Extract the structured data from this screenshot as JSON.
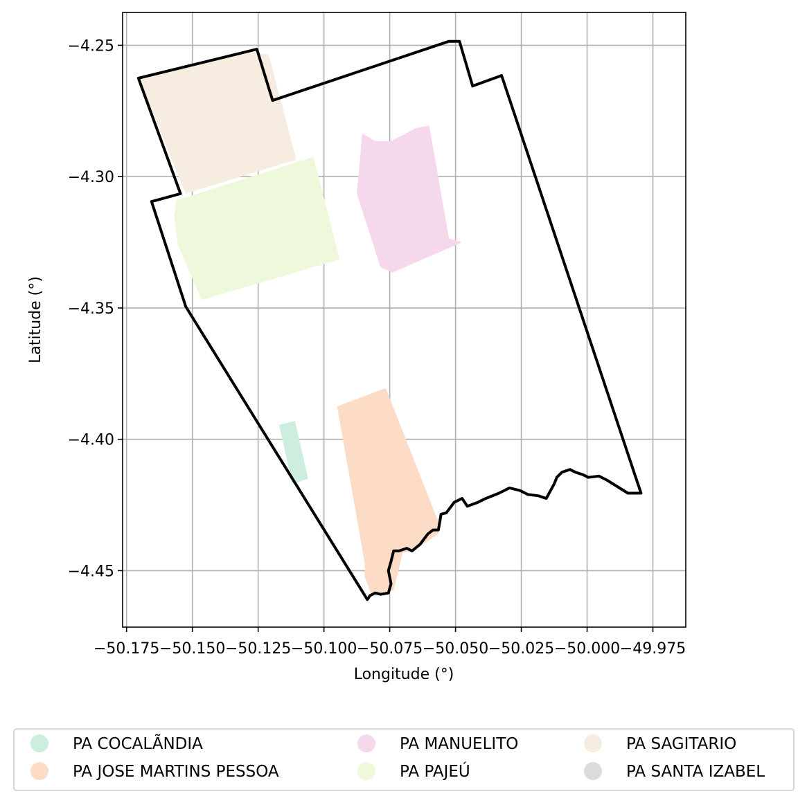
{
  "chart_data": {
    "type": "map",
    "xlabel": "Longitude (°)",
    "ylabel": "Latitude (°)",
    "xlim": [
      -50.1765,
      -49.9625
    ],
    "ylim": [
      -4.4715,
      -4.2375
    ],
    "grid": true,
    "x_ticks": [
      {
        "value": -50.175,
        "label": "−50.175"
      },
      {
        "value": -50.15,
        "label": "−50.150"
      },
      {
        "value": -50.125,
        "label": "−50.125"
      },
      {
        "value": -50.1,
        "label": "−50.100"
      },
      {
        "value": -50.075,
        "label": "−50.075"
      },
      {
        "value": -50.05,
        "label": "−50.050"
      },
      {
        "value": -50.025,
        "label": "−50.025"
      },
      {
        "value": -50.0,
        "label": "−50.000"
      },
      {
        "value": -49.975,
        "label": "−49.975"
      }
    ],
    "y_ticks": [
      {
        "value": -4.25,
        "label": "−4.25"
      },
      {
        "value": -4.3,
        "label": "−4.30"
      },
      {
        "value": -4.35,
        "label": "−4.35"
      },
      {
        "value": -4.4,
        "label": "−4.40"
      },
      {
        "value": -4.45,
        "label": "−4.45"
      }
    ],
    "series": [
      {
        "name": "PA COCALÃNDIA",
        "color": "#cdeede",
        "polygon": [
          [
            -50.117,
            -4.3945
          ],
          [
            -50.111,
            -4.393
          ],
          [
            -50.106,
            -4.415
          ],
          [
            -50.112,
            -4.417
          ]
        ]
      },
      {
        "name": "PA JOSE MARTINS PESSOA",
        "color": "#fcdcc6",
        "polygon": [
          [
            -50.095,
            -4.3875
          ],
          [
            -50.0765,
            -4.3805
          ],
          [
            -50.0565,
            -4.4315
          ],
          [
            -50.0565,
            -4.436
          ],
          [
            -50.066,
            -4.4425
          ],
          [
            -50.07,
            -4.443
          ],
          [
            -50.0735,
            -4.4575
          ],
          [
            -50.082,
            -4.459
          ],
          [
            -50.0845,
            -4.4525
          ],
          [
            -50.0845,
            -4.447
          ]
        ]
      },
      {
        "name": "PA MANUELITO",
        "color": "#f5d8ec",
        "polygon": [
          [
            -50.0855,
            -4.2835
          ],
          [
            -50.0805,
            -4.2865
          ],
          [
            -50.0745,
            -4.2865
          ],
          [
            -50.065,
            -4.2815
          ],
          [
            -50.06,
            -4.2805
          ],
          [
            -50.0525,
            -4.3235
          ],
          [
            -50.0475,
            -4.325
          ],
          [
            -50.074,
            -4.3365
          ],
          [
            -50.0785,
            -4.3345
          ],
          [
            -50.0875,
            -4.3065
          ],
          [
            -50.0865,
            -4.296
          ]
        ]
      },
      {
        "name": "PA PAJEÚ",
        "color": "#eef8da",
        "polygon": [
          [
            -50.156,
            -4.309
          ],
          [
            -50.104,
            -4.2925
          ],
          [
            -50.094,
            -4.3315
          ],
          [
            -50.1465,
            -4.347
          ],
          [
            -50.1555,
            -4.326
          ],
          [
            -50.157,
            -4.315
          ]
        ]
      },
      {
        "name": "PA SAGITARIO",
        "color": "#f6ece0",
        "polygon": [
          [
            -50.1705,
            -4.2625
          ],
          [
            -50.131,
            -4.2525
          ],
          [
            -50.121,
            -4.2535
          ],
          [
            -50.1105,
            -4.2935
          ],
          [
            -50.1525,
            -4.3065
          ],
          [
            -50.1645,
            -4.277
          ]
        ]
      },
      {
        "name": "PA SANTA IZABEL",
        "color": "#dcdcdc",
        "polygon": []
      }
    ],
    "boundary": {
      "color": "#000000",
      "polygon": [
        [
          -50.1705,
          -4.2625
        ],
        [
          -50.1255,
          -4.2515
        ],
        [
          -50.1195,
          -4.271
        ],
        [
          -50.0525,
          -4.2485
        ],
        [
          -50.0485,
          -4.2485
        ],
        [
          -50.0435,
          -4.2655
        ],
        [
          -50.0325,
          -4.2615
        ],
        [
          -49.9795,
          -4.4205
        ],
        [
          -49.9845,
          -4.4205
        ],
        [
          -49.9885,
          -4.418
        ],
        [
          -49.9925,
          -4.4155
        ],
        [
          -49.9955,
          -4.414
        ],
        [
          -49.9995,
          -4.4145
        ],
        [
          -50.0015,
          -4.4135
        ],
        [
          -50.0045,
          -4.4125
        ],
        [
          -50.0065,
          -4.4115
        ],
        [
          -50.0095,
          -4.4125
        ],
        [
          -50.0115,
          -4.4145
        ],
        [
          -50.0125,
          -4.417
        ],
        [
          -50.0155,
          -4.4225
        ],
        [
          -50.0185,
          -4.4215
        ],
        [
          -50.0225,
          -4.421
        ],
        [
          -50.0255,
          -4.4195
        ],
        [
          -50.0295,
          -4.4185
        ],
        [
          -50.0335,
          -4.4205
        ],
        [
          -50.0385,
          -4.4225
        ],
        [
          -50.0415,
          -4.424
        ],
        [
          -50.0455,
          -4.4255
        ],
        [
          -50.0475,
          -4.4225
        ],
        [
          -50.0505,
          -4.424
        ],
        [
          -50.0535,
          -4.428
        ],
        [
          -50.0555,
          -4.4285
        ],
        [
          -50.0565,
          -4.4345
        ],
        [
          -50.0585,
          -4.4345
        ],
        [
          -50.0605,
          -4.436
        ],
        [
          -50.0635,
          -4.44
        ],
        [
          -50.0665,
          -4.4425
        ],
        [
          -50.0685,
          -4.4415
        ],
        [
          -50.0715,
          -4.4425
        ],
        [
          -50.0735,
          -4.4425
        ],
        [
          -50.0745,
          -4.4465
        ],
        [
          -50.0755,
          -4.45
        ],
        [
          -50.0745,
          -4.455
        ],
        [
          -50.0755,
          -4.4585
        ],
        [
          -50.0785,
          -4.459
        ],
        [
          -50.0805,
          -4.4585
        ],
        [
          -50.0825,
          -4.4595
        ],
        [
          -50.0835,
          -4.461
        ],
        [
          -50.1525,
          -4.3495
        ],
        [
          -50.1655,
          -4.3095
        ],
        [
          -50.1545,
          -4.3065
        ],
        [
          -50.1705,
          -4.2625
        ]
      ]
    }
  }
}
